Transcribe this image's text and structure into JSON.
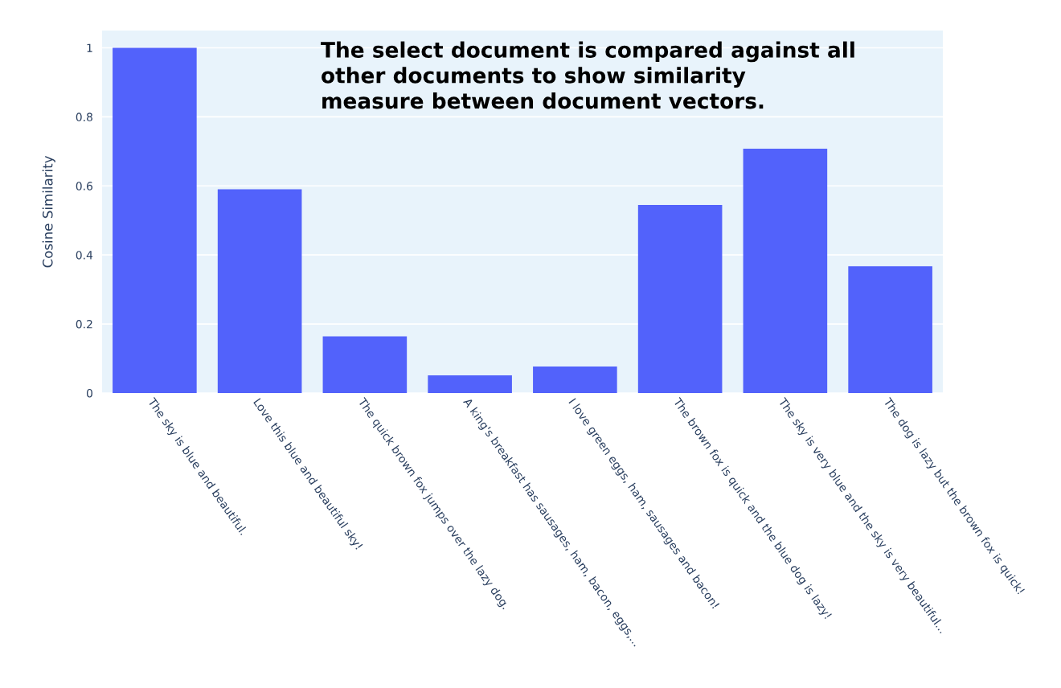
{
  "chart_data": {
    "type": "bar",
    "ylabel": "Cosine Similarity",
    "categories": [
      "The sky is blue and beautiful.",
      "Love this blue and beautiful sky!",
      "The quick brown fox jumps over the lazy dog.",
      "A king's breakfast has sausages, ham, bacon, eggs,...",
      "I love green eggs, ham, sausages and bacon!",
      "The brown fox is quick and the blue dog is lazy!",
      "The sky is very blue and the sky is very beautiful...",
      "The dog is lazy but the brown fox is quick!"
    ],
    "values": [
      1.0,
      0.59,
      0.164,
      0.051,
      0.077,
      0.545,
      0.708,
      0.367
    ],
    "color": "#5262fb",
    "ylim": [
      0,
      1.05
    ],
    "yticks": [
      0,
      0.2,
      0.4,
      0.6,
      0.8,
      1
    ],
    "grid": "y",
    "annotations": [
      "The select document is compared against all\nother documents to show similarity\nmeasure between document vectors."
    ]
  }
}
